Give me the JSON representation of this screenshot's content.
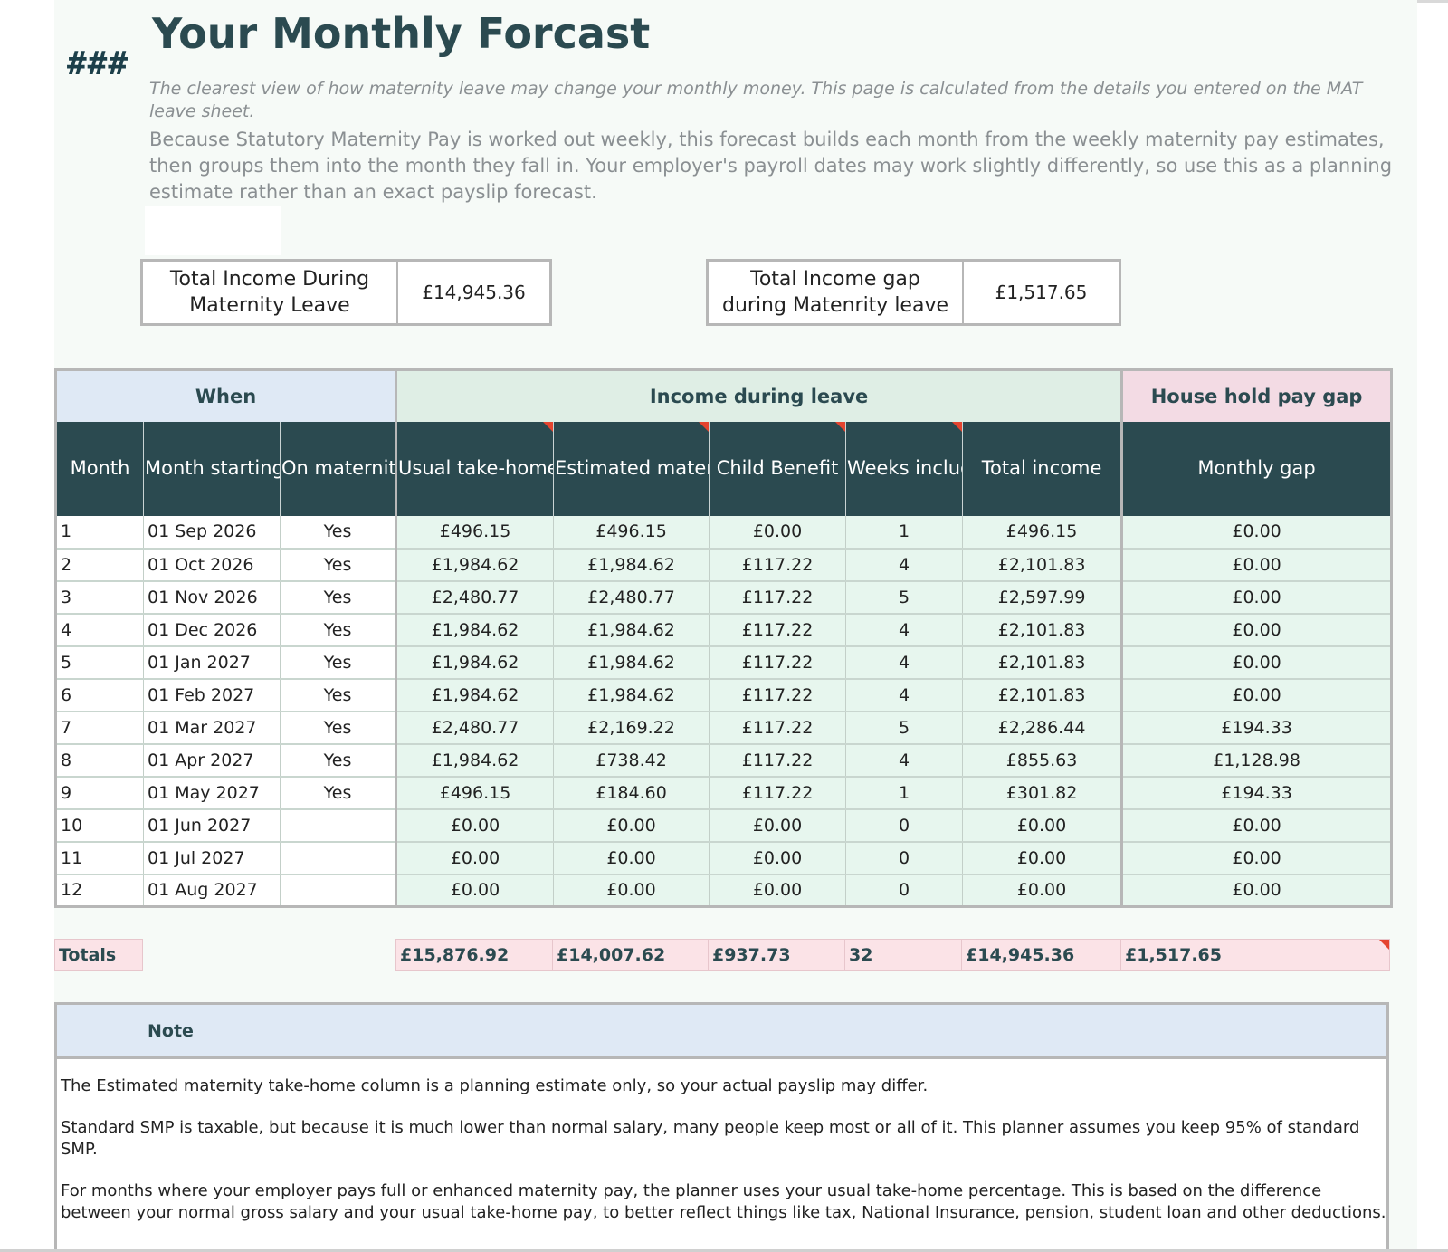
{
  "page": {
    "marker": "###",
    "title": "Your Monthly Forcast",
    "intro_1": "The clearest view of how maternity leave may change your monthly money. This page is calculated from the details you entered on the MAT leave sheet.",
    "intro_2": "Because Statutory Maternity Pay is worked out weekly, this forecast builds each month from the weekly maternity pay estimates, then groups them into the month they fall in.  Your employer's payroll dates may work slightly differently, so use this as a planning estimate rather than an exact payslip forecast."
  },
  "summary": {
    "total_income_label": "Total Income During Maternity Leave",
    "total_income_value": "£14,945.36",
    "income_gap_label": "Total Income gap during Matenrity  leave",
    "income_gap_value": "£1,517.65"
  },
  "table": {
    "groups": {
      "when": "When",
      "income": "Income during leave",
      "gap": "House hold pay gap"
    },
    "headers": [
      "Month",
      "Month starting",
      "On maternity leave",
      "Usual take-home",
      "Estimated maternity take-home",
      "Child Benefit",
      "Weeks included",
      "Total income",
      "Monthly gap"
    ],
    "rows": [
      [
        "1",
        "01 Sep 2026",
        "Yes",
        "£496.15",
        "£496.15",
        "£0.00",
        "1",
        "£496.15",
        "£0.00"
      ],
      [
        "2",
        "01 Oct 2026",
        "Yes",
        "£1,984.62",
        "£1,984.62",
        "£117.22",
        "4",
        "£2,101.83",
        "£0.00"
      ],
      [
        "3",
        "01 Nov 2026",
        "Yes",
        "£2,480.77",
        "£2,480.77",
        "£117.22",
        "5",
        "£2,597.99",
        "£0.00"
      ],
      [
        "4",
        "01 Dec 2026",
        "Yes",
        "£1,984.62",
        "£1,984.62",
        "£117.22",
        "4",
        "£2,101.83",
        "£0.00"
      ],
      [
        "5",
        "01 Jan 2027",
        "Yes",
        "£1,984.62",
        "£1,984.62",
        "£117.22",
        "4",
        "£2,101.83",
        "£0.00"
      ],
      [
        "6",
        "01 Feb 2027",
        "Yes",
        "£1,984.62",
        "£1,984.62",
        "£117.22",
        "4",
        "£2,101.83",
        "£0.00"
      ],
      [
        "7",
        "01 Mar 2027",
        "Yes",
        "£2,480.77",
        "£2,169.22",
        "£117.22",
        "5",
        "£2,286.44",
        "£194.33"
      ],
      [
        "8",
        "01 Apr 2027",
        "Yes",
        "£1,984.62",
        "£738.42",
        "£117.22",
        "4",
        "£855.63",
        "£1,128.98"
      ],
      [
        "9",
        "01 May 2027",
        "Yes",
        "£496.15",
        "£184.60",
        "£117.22",
        "1",
        "£301.82",
        "£194.33"
      ],
      [
        "10",
        "01 Jun 2027",
        "",
        "£0.00",
        "£0.00",
        "£0.00",
        "0",
        "£0.00",
        "£0.00"
      ],
      [
        "11",
        "01 Jul 2027",
        "",
        "£0.00",
        "£0.00",
        "£0.00",
        "0",
        "£0.00",
        "£0.00"
      ],
      [
        "12",
        "01 Aug 2027",
        "",
        "£0.00",
        "£0.00",
        "£0.00",
        "0",
        "£0.00",
        "£0.00"
      ]
    ]
  },
  "totals": {
    "label": "Totals",
    "usual": "£15,876.92",
    "estimated": "£14,007.62",
    "child_benefit": "£937.73",
    "weeks": "32",
    "total_income": "£14,945.36",
    "monthly_gap": "£1,517.65"
  },
  "note": {
    "heading": "Note",
    "lines": [
      "The Estimated maternity take-home column is a planning estimate only, so your actual payslip may differ.",
      "Standard SMP is taxable, but because it is much lower than normal salary, many people keep most or all of it. This planner assumes you keep 95% of standard SMP.",
      "For months where your employer pays full or enhanced maternity pay, the planner uses your usual take-home percentage. This is based on the difference between your normal gross salary and your usual take-home pay, to better reflect things like tax, National Insurance, pension, student loan and other deductions."
    ]
  },
  "colors": {
    "header_dark": "#2b4a50",
    "when_band": "#dfe9f5",
    "income_band": "#dfeee5",
    "gap_band": "#f3dbe4",
    "row_fill": "#e7f6ee",
    "totals_fill": "#fbe3e7",
    "comment_flag": "#e5442f"
  }
}
